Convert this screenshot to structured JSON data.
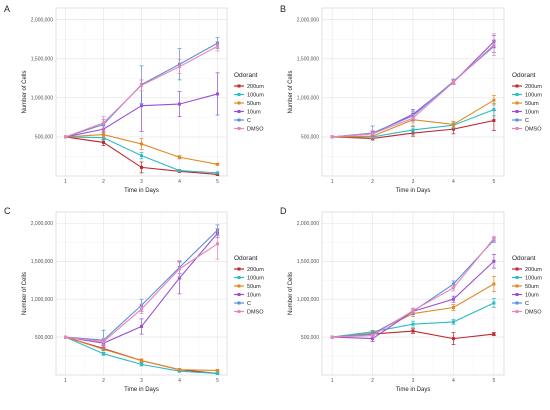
{
  "colors": {
    "200um": "#c1272d",
    "100um": "#2bbcc4",
    "50um": "#e08a26",
    "10um": "#9a4fd6",
    "C": "#5b8fdc",
    "DMSO": "#e985b8"
  },
  "chart_data": [
    {
      "type": "line",
      "panel": "A",
      "xlabel": "Time in Days",
      "ylabel": "Number of Cells",
      "x": [
        1,
        2,
        3,
        4,
        5
      ],
      "xlim": [
        0.75,
        5.25
      ],
      "ylim": [
        0,
        2150000
      ],
      "yticks": [
        500000,
        1000000,
        1500000,
        2000000
      ],
      "ytick_labels": [
        "500,000",
        "1,000,000",
        "1,500,000",
        "2,000,000"
      ],
      "legend": {
        "title": "Odorant",
        "position": "right"
      },
      "series": [
        {
          "name": "200um",
          "values": [
            500000,
            430000,
            110000,
            60000,
            20000
          ],
          "err": [
            0,
            40000,
            70000,
            10000,
            10000
          ]
        },
        {
          "name": "100um",
          "values": [
            500000,
            490000,
            260000,
            70000,
            40000
          ],
          "err": [
            0,
            30000,
            40000,
            10000,
            10000
          ]
        },
        {
          "name": "50um",
          "values": [
            500000,
            530000,
            410000,
            240000,
            150000
          ],
          "err": [
            0,
            40000,
            70000,
            20000,
            10000
          ]
        },
        {
          "name": "10um",
          "values": [
            500000,
            600000,
            900000,
            920000,
            1050000
          ],
          "err": [
            0,
            40000,
            330000,
            160000,
            270000
          ]
        },
        {
          "name": "C",
          "values": [
            500000,
            660000,
            1170000,
            1430000,
            1700000
          ],
          "err": [
            0,
            60000,
            240000,
            200000,
            70000
          ]
        },
        {
          "name": "DMSO",
          "values": [
            500000,
            680000,
            1160000,
            1400000,
            1660000
          ],
          "err": [
            0,
            80000,
            70000,
            90000,
            60000
          ]
        }
      ]
    },
    {
      "type": "line",
      "panel": "B",
      "xlabel": "Time in Days",
      "ylabel": "Number of Cells",
      "x": [
        1,
        2,
        3,
        4,
        5
      ],
      "xlim": [
        0.75,
        5.25
      ],
      "ylim": [
        0,
        2150000
      ],
      "yticks": [
        500000,
        1000000,
        1500000,
        2000000
      ],
      "ytick_labels": [
        "500,000",
        "1,000,000",
        "1,500,000",
        "2,000,000"
      ],
      "legend": {
        "title": "Odorant",
        "position": "right"
      },
      "series": [
        {
          "name": "200um",
          "values": [
            500000,
            480000,
            550000,
            600000,
            710000
          ],
          "err": [
            0,
            20000,
            40000,
            60000,
            130000
          ]
        },
        {
          "name": "100um",
          "values": [
            500000,
            500000,
            590000,
            650000,
            850000
          ],
          "err": [
            0,
            20000,
            40000,
            40000,
            80000
          ]
        },
        {
          "name": "50um",
          "values": [
            500000,
            510000,
            720000,
            660000,
            970000
          ],
          "err": [
            0,
            30000,
            80000,
            40000,
            60000
          ]
        },
        {
          "name": "10um",
          "values": [
            500000,
            540000,
            790000,
            1200000,
            1720000
          ],
          "err": [
            0,
            30000,
            60000,
            30000,
            80000
          ]
        },
        {
          "name": "C",
          "values": [
            500000,
            550000,
            770000,
            1210000,
            1660000
          ],
          "err": [
            0,
            90000,
            60000,
            30000,
            80000
          ]
        },
        {
          "name": "DMSO",
          "values": [
            500000,
            540000,
            740000,
            1200000,
            1680000
          ],
          "err": [
            0,
            40000,
            50000,
            30000,
            140000
          ]
        }
      ]
    },
    {
      "type": "line",
      "panel": "C",
      "xlabel": "Time in Days",
      "ylabel": "Number of Cells",
      "x": [
        1,
        2,
        3,
        4,
        5
      ],
      "xlim": [
        0.75,
        5.25
      ],
      "ylim": [
        0,
        2150000
      ],
      "yticks": [
        500000,
        1000000,
        1500000,
        2000000
      ],
      "ytick_labels": [
        "500,000",
        "1,000,000",
        "1,500,000",
        "2,000,000"
      ],
      "legend": {
        "title": "Odorant",
        "position": "right"
      },
      "series": [
        {
          "name": "200um",
          "values": [
            500000,
            350000,
            190000,
            70000,
            20000
          ],
          "err": [
            0,
            20000,
            20000,
            10000,
            10000
          ]
        },
        {
          "name": "100um",
          "values": [
            500000,
            280000,
            140000,
            50000,
            20000
          ],
          "err": [
            0,
            20000,
            20000,
            10000,
            10000
          ]
        },
        {
          "name": "50um",
          "values": [
            500000,
            340000,
            190000,
            70000,
            60000
          ],
          "err": [
            0,
            20000,
            20000,
            10000,
            10000
          ]
        },
        {
          "name": "10um",
          "values": [
            500000,
            420000,
            640000,
            1280000,
            1870000
          ],
          "err": [
            0,
            30000,
            100000,
            210000,
            60000
          ]
        },
        {
          "name": "C",
          "values": [
            500000,
            460000,
            920000,
            1420000,
            1910000
          ],
          "err": [
            0,
            130000,
            80000,
            80000,
            70000
          ]
        },
        {
          "name": "DMSO",
          "values": [
            500000,
            440000,
            870000,
            1400000,
            1730000
          ],
          "err": [
            0,
            40000,
            60000,
            110000,
            200000
          ]
        }
      ]
    },
    {
      "type": "line",
      "panel": "D",
      "xlabel": "Time in Days",
      "ylabel": "Number of Cells",
      "x": [
        1,
        2,
        3,
        4,
        5
      ],
      "xlim": [
        0.75,
        5.25
      ],
      "ylim": [
        0,
        2150000
      ],
      "yticks": [
        500000,
        1000000,
        1500000,
        2000000
      ],
      "ytick_labels": [
        "500,000",
        "1,000,000",
        "1,500,000",
        "2,000,000"
      ],
      "legend": {
        "title": "Odorant",
        "position": "right"
      },
      "series": [
        {
          "name": "200um",
          "values": [
            500000,
            540000,
            580000,
            480000,
            540000
          ],
          "err": [
            0,
            20000,
            30000,
            80000,
            20000
          ]
        },
        {
          "name": "100um",
          "values": [
            500000,
            570000,
            670000,
            700000,
            950000
          ],
          "err": [
            0,
            20000,
            40000,
            30000,
            60000
          ]
        },
        {
          "name": "50um",
          "values": [
            500000,
            550000,
            810000,
            890000,
            1200000
          ],
          "err": [
            0,
            20000,
            40000,
            40000,
            100000
          ]
        },
        {
          "name": "10um",
          "values": [
            500000,
            480000,
            840000,
            1000000,
            1500000
          ],
          "err": [
            0,
            40000,
            40000,
            40000,
            90000
          ]
        },
        {
          "name": "C",
          "values": [
            500000,
            540000,
            840000,
            1200000,
            1780000
          ],
          "err": [
            0,
            20000,
            40000,
            40000,
            30000
          ]
        },
        {
          "name": "DMSO",
          "values": [
            500000,
            520000,
            850000,
            1150000,
            1800000
          ],
          "err": [
            0,
            20000,
            30000,
            40000,
            30000
          ]
        }
      ]
    }
  ]
}
